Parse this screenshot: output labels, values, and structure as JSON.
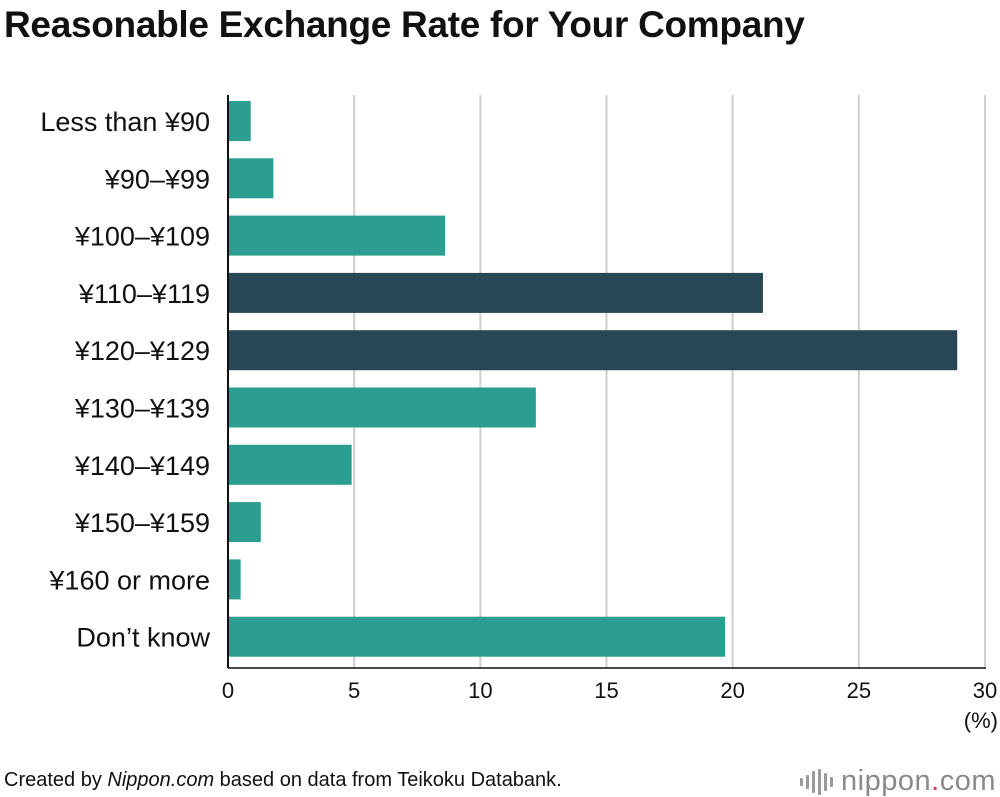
{
  "title": "Reasonable Exchange Rate for Your Company",
  "chart_data": {
    "type": "bar",
    "orientation": "horizontal",
    "title": "Reasonable Exchange Rate for Your Company",
    "categories": [
      "Less than ¥90",
      "¥90–¥99",
      "¥100–¥109",
      "¥110–¥119",
      "¥120–¥129",
      "¥130–¥139",
      "¥140–¥149",
      "¥150–¥159",
      "¥160 or more",
      "Don’t know"
    ],
    "values": [
      0.9,
      1.8,
      8.6,
      21.2,
      28.9,
      12.2,
      4.9,
      1.3,
      0.5,
      19.7
    ],
    "highlighted": [
      false,
      false,
      false,
      true,
      true,
      false,
      false,
      false,
      false,
      false
    ],
    "colors": {
      "default": "#2b9e8f",
      "highlight": "#274754",
      "grid": "#cfcfcf",
      "axis": "#111111"
    },
    "xlim": [
      0,
      30
    ],
    "xticks": [
      0,
      5,
      10,
      15,
      20,
      25,
      30
    ],
    "unit": "(%)",
    "grid": true
  },
  "footer": {
    "prefix": "Created by ",
    "brand": "Nippon.com",
    "suffix": " based on data from Teikoku Databank."
  },
  "logo": {
    "name": "nippon",
    "dot": ".",
    "tld": "com",
    "icon": "sound-wave-icon"
  }
}
